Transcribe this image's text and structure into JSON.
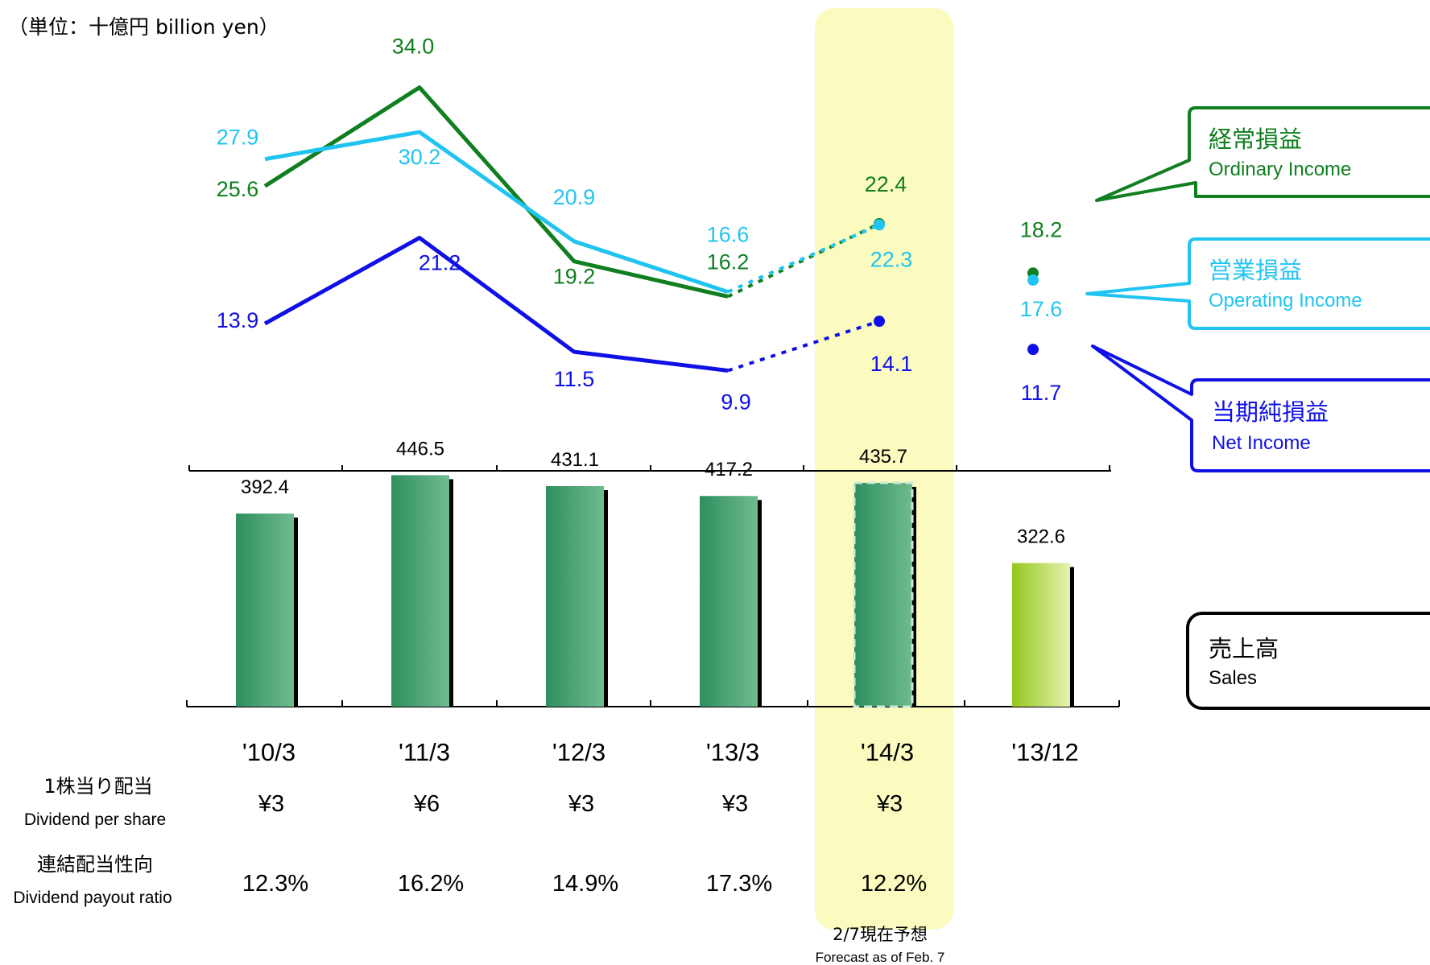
{
  "unit_label": "（単位：十億円 billion yen）",
  "colors": {
    "ordinary": "#0f7f1f",
    "operating": "#21c4f0",
    "net": "#1010e6",
    "bar": "#3a9a6a",
    "bar_light": "#a8d428",
    "highlight": "#fbfbbf"
  },
  "legend": {
    "ordinary": {
      "jp": "経常損益",
      "en": "Ordinary Income"
    },
    "operating": {
      "jp": "営業損益",
      "en": "Operating Income"
    },
    "net": {
      "jp": "当期純損益",
      "en": "Net Income"
    },
    "sales": {
      "jp": "売上高",
      "en": "Sales"
    }
  },
  "forecast_note": {
    "jp": "2/7現在予想",
    "en": "Forecast as of Feb. 7"
  },
  "rows": {
    "dividend": {
      "jp": "1株当り配当",
      "en": "Dividend per share",
      "values": [
        "¥3",
        "¥6",
        "¥3",
        "¥3",
        "¥3"
      ]
    },
    "payout": {
      "jp": "連結配当性向",
      "en": "Dividend payout ratio",
      "values": [
        "12.3%",
        "16.2%",
        "14.9%",
        "17.3%",
        "12.2%"
      ]
    }
  },
  "chart_data": {
    "type": "bar",
    "categories": [
      "'10/3",
      "'11/3",
      "'12/3",
      "'13/3",
      "'14/3",
      "'13/12"
    ],
    "forecast_category": "'14/3",
    "sales": {
      "name": "売上高 Sales",
      "values": [
        392.4,
        446.5,
        431.1,
        417.2,
        435.7,
        322.6
      ],
      "labels": [
        "392.4",
        "446.5",
        "431.1",
        "417.2",
        "435.7",
        "322.6"
      ]
    },
    "lines": [
      {
        "key": "ordinary",
        "name": "経常損益 Ordinary Income",
        "values": [
          25.6,
          34.0,
          19.2,
          16.2,
          22.4,
          18.2
        ],
        "labels": [
          "25.6",
          "34.0",
          "19.2",
          "16.2",
          "22.4",
          "18.2"
        ]
      },
      {
        "key": "operating",
        "name": "営業損益 Operating Income",
        "values": [
          27.9,
          30.2,
          20.9,
          16.6,
          22.3,
          17.6
        ],
        "labels": [
          "27.9",
          "30.2",
          "20.9",
          "16.6",
          "22.3",
          "17.6"
        ]
      },
      {
        "key": "net",
        "name": "当期純損益 Net Income",
        "values": [
          13.9,
          21.2,
          11.5,
          9.9,
          14.1,
          11.7
        ],
        "labels": [
          "13.9",
          "21.2",
          "11.5",
          "9.9",
          "14.1",
          "11.7"
        ]
      }
    ]
  }
}
